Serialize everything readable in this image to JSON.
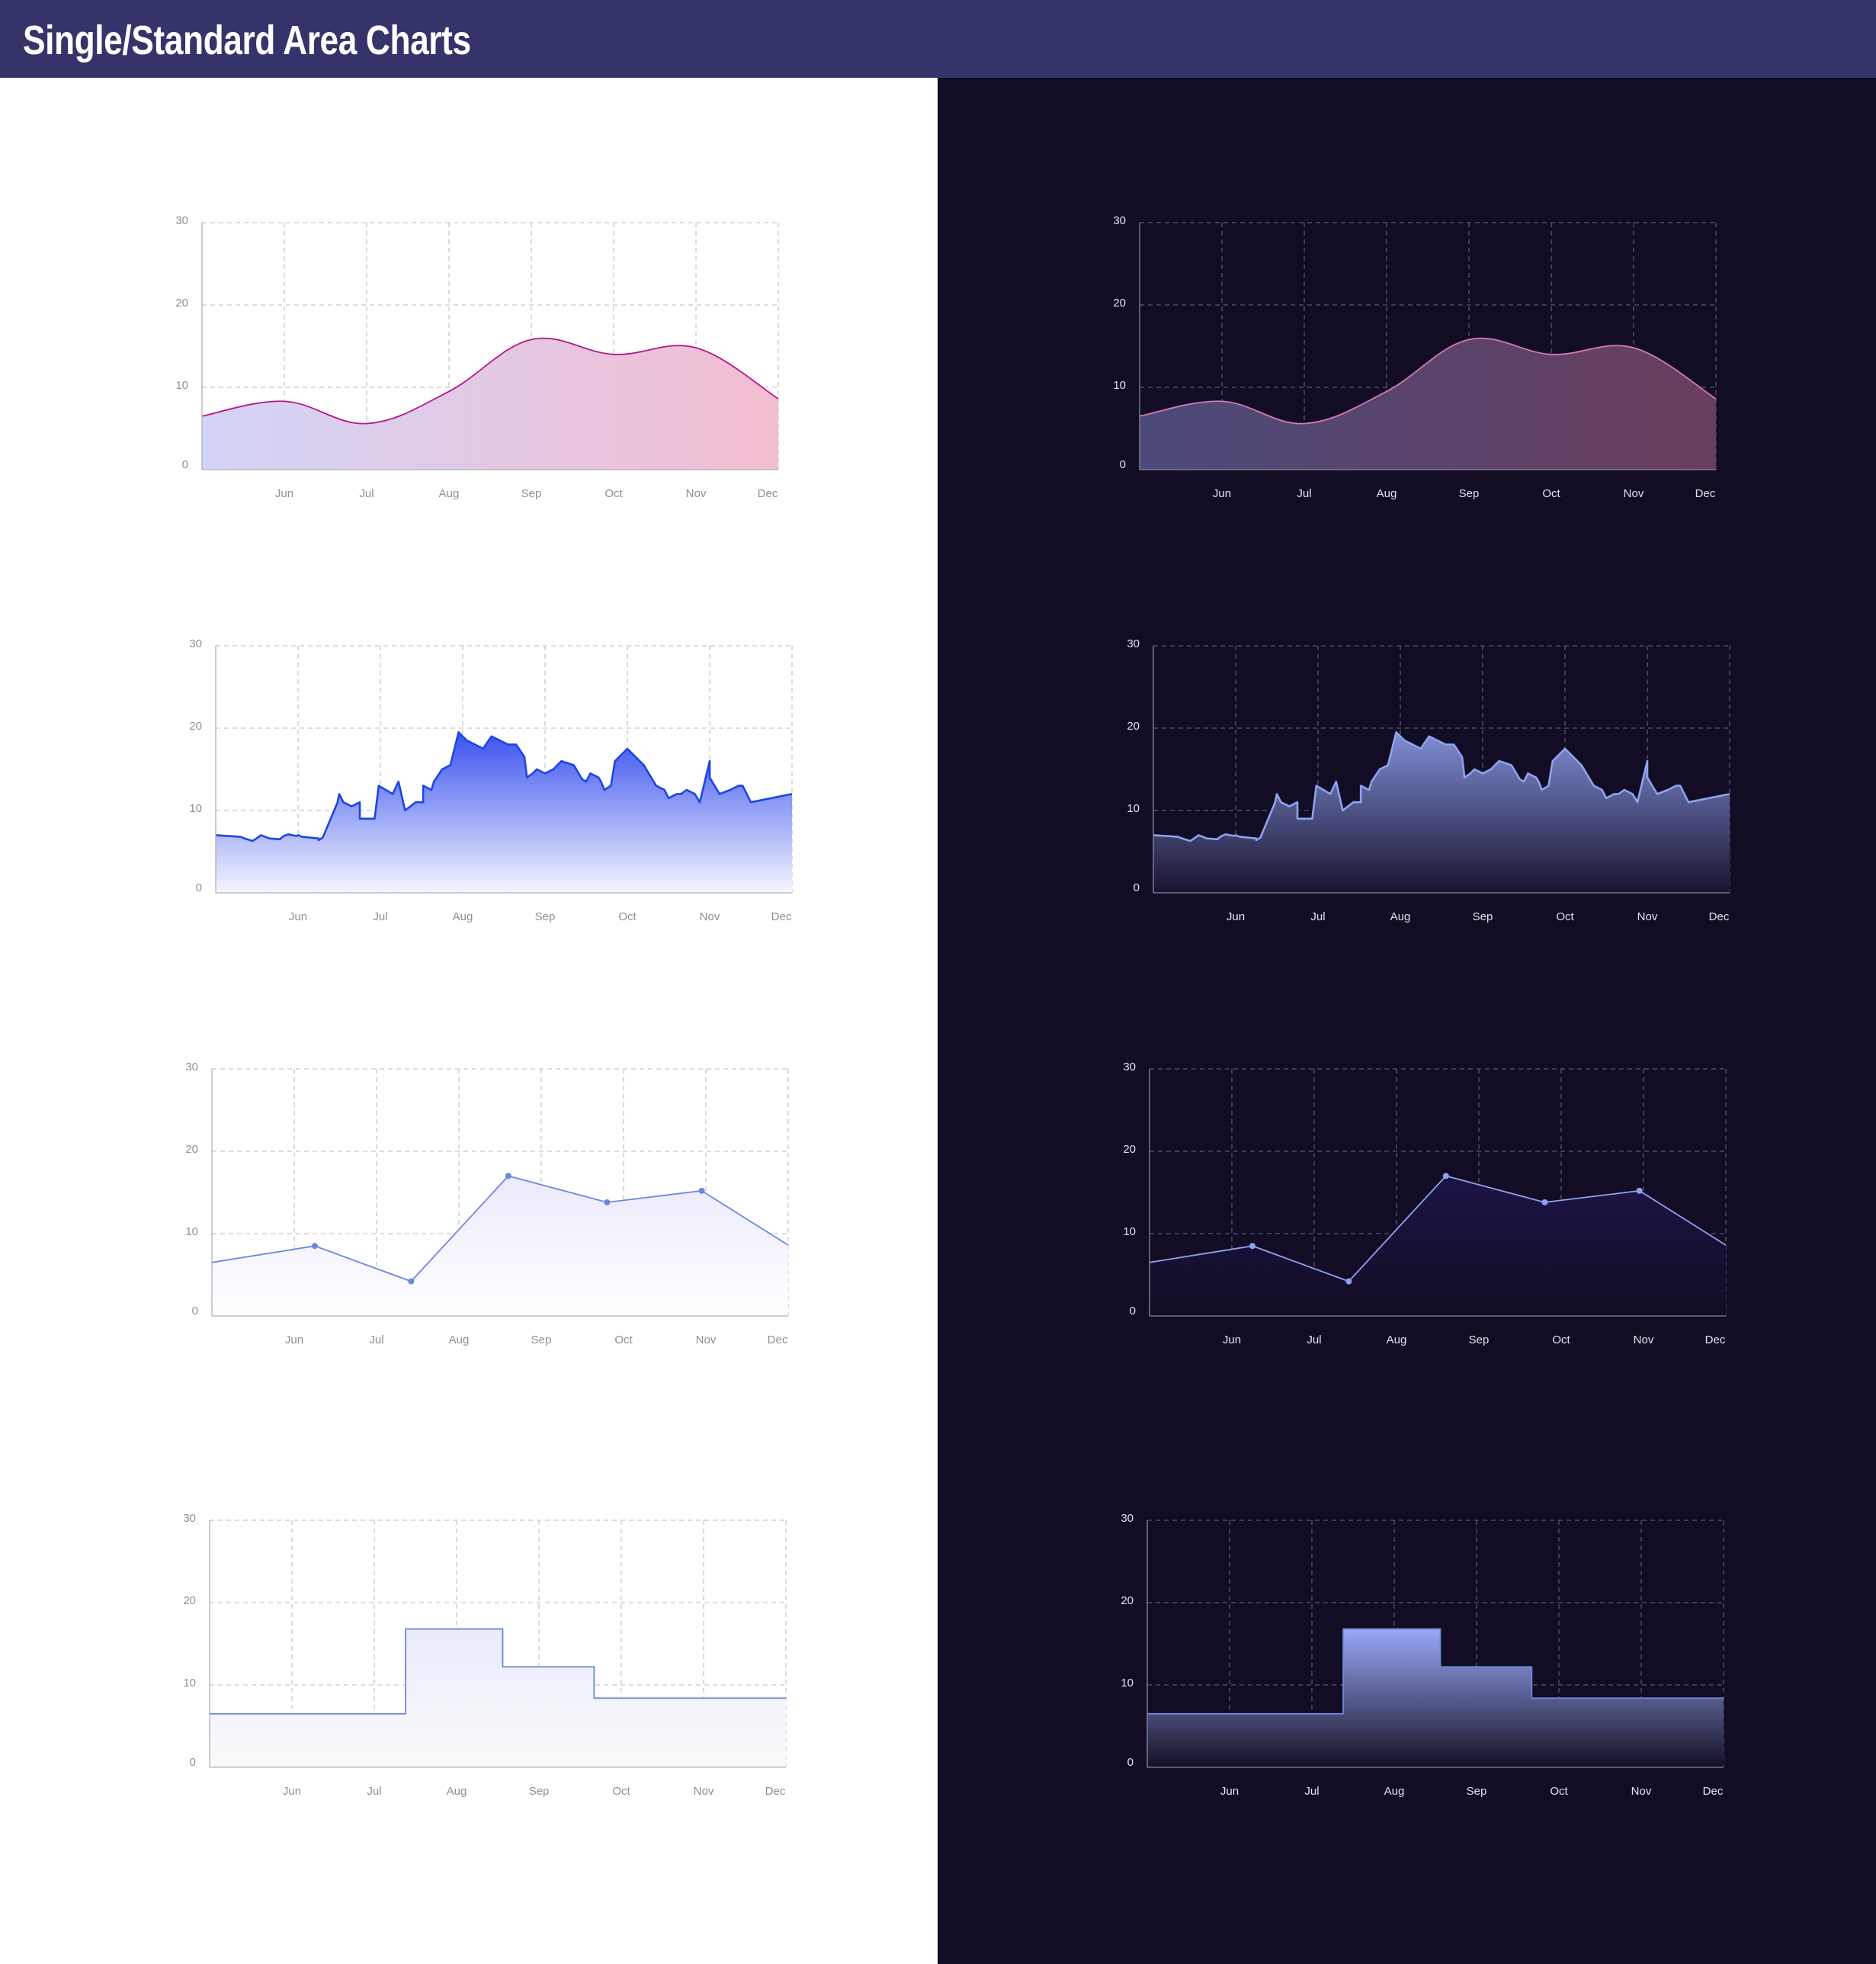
{
  "page": {
    "title": "Single/Standard Area Charts",
    "colors": {
      "header": "#35346a",
      "light_bg": "#ffffff",
      "dark_bg": "#120d24"
    }
  },
  "chart_data": [
    {
      "id": "smooth-light",
      "type": "area",
      "theme": "light",
      "curve": "smooth",
      "categories": [
        "Jun",
        "Jul",
        "Aug",
        "Sep",
        "Oct",
        "Nov",
        "Dec"
      ],
      "yticks": [
        "0",
        "10",
        "20",
        "30"
      ],
      "ylim": [
        0,
        30
      ],
      "grid": true,
      "x": [
        0,
        1,
        2,
        3,
        4,
        5,
        6,
        7
      ],
      "y": [
        6.5,
        8.3,
        5.6,
        9.5,
        15.8,
        14,
        14.8,
        8.6
      ],
      "line_color": "#b5168a",
      "fill_start": "#d2d4f6",
      "fill_end": "#f3bdd1"
    },
    {
      "id": "jagged-light",
      "type": "area",
      "theme": "light",
      "curve": "linear",
      "categories": [
        "Jun",
        "Jul",
        "Aug",
        "Sep",
        "Oct",
        "Nov",
        "Dec"
      ],
      "yticks": [
        "0",
        "10",
        "20",
        "30"
      ],
      "ylim": [
        0,
        30
      ],
      "grid": true,
      "x": [
        0,
        0.3,
        0.35,
        0.45,
        0.48,
        0.55,
        0.6,
        0.65,
        0.78,
        0.8,
        0.83,
        0.88,
        0.93,
        0.98,
        1.0,
        1.05,
        1.25,
        1.25,
        1.3,
        1.48,
        1.5,
        1.55,
        1.65,
        1.75,
        1.75,
        1.8,
        1.93,
        1.98,
        2.15,
        2.22,
        2.3,
        2.43,
        2.52,
        2.52,
        2.62,
        2.65,
        2.75,
        2.85,
        2.95,
        3.05,
        3.25,
        3.28,
        3.35,
        3.45,
        3.55,
        3.6,
        3.65,
        3.75,
        3.78,
        3.85,
        3.9,
        4.0,
        4.1,
        4.2,
        4.35,
        4.45,
        4.5,
        4.55,
        4.65,
        4.68,
        4.72,
        4.8,
        4.85,
        5.0,
        5.2,
        5.35,
        5.45,
        5.5,
        5.6,
        5.65,
        5.72,
        5.82,
        5.88,
        6.0,
        6.0,
        6.12,
        6.25,
        6.35,
        6.4,
        6.5,
        7.0
      ],
      "y": [
        7,
        6.8,
        6.6,
        6.3,
        6.5,
        7,
        6.8,
        6.6,
        6.5,
        6.7,
        6.9,
        7.1,
        7.0,
        6.9,
        7.0,
        6.8,
        6.6,
        6.4,
        6.7,
        11,
        12,
        11,
        10.5,
        11,
        9,
        9,
        9,
        13,
        12,
        13.5,
        10,
        11,
        11,
        13,
        12.5,
        13.5,
        15,
        15.5,
        19.5,
        18.5,
        17.5,
        18,
        19,
        18.5,
        18,
        18,
        18,
        16.5,
        14,
        14.5,
        15,
        14.5,
        15,
        16,
        15.5,
        13.8,
        13.5,
        14.5,
        14,
        13.5,
        12.5,
        13,
        16,
        17.5,
        15.5,
        13,
        12.5,
        11.5,
        12,
        12,
        12.5,
        12,
        11,
        16,
        14,
        12,
        12.5,
        13,
        13,
        11,
        12
      ],
      "line_color": "#1d45e4",
      "fill_start": "#3a52ee",
      "fill_end": "#f5f6ff"
    },
    {
      "id": "points-light",
      "type": "area",
      "theme": "light",
      "curve": "linear",
      "categories": [
        "Jun",
        "Jul",
        "Aug",
        "Sep",
        "Oct",
        "Nov",
        "Dec"
      ],
      "yticks": [
        "0",
        "10",
        "20",
        "30"
      ],
      "ylim": [
        0,
        30
      ],
      "grid": true,
      "x": [
        0,
        1.25,
        2.42,
        3.6,
        4.8,
        5.95,
        7.0
      ],
      "y": [
        6.5,
        8.5,
        4.2,
        17,
        13.8,
        15.2,
        8.6
      ],
      "markers": [
        false,
        true,
        true,
        true,
        true,
        true,
        false
      ],
      "line_color": "#6c88de",
      "fill_start": "#ece9fb",
      "fill_end": "#ffffff"
    },
    {
      "id": "step-light",
      "type": "area",
      "theme": "light",
      "curve": "step",
      "categories": [
        "Jun",
        "Jul",
        "Aug",
        "Sep",
        "Oct",
        "Nov",
        "Dec"
      ],
      "yticks": [
        "0",
        "10",
        "20",
        "30"
      ],
      "ylim": [
        0,
        30
      ],
      "grid": true,
      "x": [
        0,
        2.38,
        3.56,
        4.67,
        7.0
      ],
      "y": [
        6.5,
        16.8,
        12.2,
        8.4,
        8.4
      ],
      "line_color": "#6c88de",
      "fill_start": "#e8ecfb",
      "fill_end": "#fafafa"
    },
    {
      "id": "smooth-dark",
      "type": "area",
      "theme": "dark",
      "curve": "smooth",
      "categories": [
        "Jun",
        "Jul",
        "Aug",
        "Sep",
        "Oct",
        "Nov",
        "Dec"
      ],
      "yticks": [
        "0",
        "10",
        "20",
        "30"
      ],
      "ylim": [
        0,
        30
      ],
      "grid": true,
      "x": [
        0,
        1,
        2,
        3,
        4,
        5,
        6,
        7
      ],
      "y": [
        6.5,
        8.3,
        5.6,
        9.5,
        15.8,
        14,
        14.8,
        8.6
      ],
      "line_color": "#d579b8",
      "fill_start": "#4b4a7a",
      "fill_end": "#6a3e5e"
    },
    {
      "id": "jagged-dark",
      "type": "area",
      "theme": "dark",
      "curve": "linear",
      "categories": [
        "Jun",
        "Jul",
        "Aug",
        "Sep",
        "Oct",
        "Nov",
        "Dec"
      ],
      "yticks": [
        "0",
        "10",
        "20",
        "30"
      ],
      "ylim": [
        0,
        30
      ],
      "grid": true,
      "x": [
        0,
        0.3,
        0.35,
        0.45,
        0.48,
        0.55,
        0.6,
        0.65,
        0.78,
        0.8,
        0.83,
        0.88,
        0.93,
        0.98,
        1.0,
        1.05,
        1.25,
        1.25,
        1.3,
        1.48,
        1.5,
        1.55,
        1.65,
        1.75,
        1.75,
        1.8,
        1.93,
        1.98,
        2.15,
        2.22,
        2.3,
        2.43,
        2.52,
        2.52,
        2.62,
        2.65,
        2.75,
        2.85,
        2.95,
        3.05,
        3.25,
        3.28,
        3.35,
        3.45,
        3.55,
        3.6,
        3.65,
        3.75,
        3.78,
        3.85,
        3.9,
        4.0,
        4.1,
        4.2,
        4.35,
        4.45,
        4.5,
        4.55,
        4.65,
        4.68,
        4.72,
        4.8,
        4.85,
        5.0,
        5.2,
        5.35,
        5.45,
        5.5,
        5.6,
        5.65,
        5.72,
        5.82,
        5.88,
        6.0,
        6.0,
        6.12,
        6.25,
        6.35,
        6.4,
        6.5,
        7.0
      ],
      "y": [
        7,
        6.8,
        6.6,
        6.3,
        6.5,
        7,
        6.8,
        6.6,
        6.5,
        6.7,
        6.9,
        7.1,
        7.0,
        6.9,
        7.0,
        6.8,
        6.6,
        6.4,
        6.7,
        11,
        12,
        11,
        10.5,
        11,
        9,
        9,
        9,
        13,
        12,
        13.5,
        10,
        11,
        11,
        13,
        12.5,
        13.5,
        15,
        15.5,
        19.5,
        18.5,
        17.5,
        18,
        19,
        18.5,
        18,
        18,
        18,
        16.5,
        14,
        14.5,
        15,
        14.5,
        15,
        16,
        15.5,
        13.8,
        13.5,
        14.5,
        14,
        13.5,
        12.5,
        13,
        16,
        17.5,
        15.5,
        13,
        12.5,
        11.5,
        12,
        12,
        12.5,
        12,
        11,
        16,
        14,
        12,
        12.5,
        13,
        13,
        11,
        12
      ],
      "line_color": "#8ea2f0",
      "fill_start": "#7f8ed4",
      "fill_end": "#1a1430"
    },
    {
      "id": "points-dark",
      "type": "area",
      "theme": "dark",
      "curve": "linear",
      "categories": [
        "Jun",
        "Jul",
        "Aug",
        "Sep",
        "Oct",
        "Nov",
        "Dec"
      ],
      "yticks": [
        "0",
        "10",
        "20",
        "30"
      ],
      "ylim": [
        0,
        30
      ],
      "grid": true,
      "x": [
        0,
        1.25,
        2.42,
        3.6,
        4.8,
        5.95,
        7.0
      ],
      "y": [
        6.5,
        8.5,
        4.2,
        17,
        13.8,
        15.2,
        8.6
      ],
      "markers": [
        false,
        true,
        true,
        true,
        true,
        true,
        false
      ],
      "line_color": "#8ea2f0",
      "fill_start": "#1c1446",
      "fill_end": "#120d24"
    },
    {
      "id": "step-dark",
      "type": "area",
      "theme": "dark",
      "curve": "step",
      "categories": [
        "Jun",
        "Jul",
        "Aug",
        "Sep",
        "Oct",
        "Nov",
        "Dec"
      ],
      "yticks": [
        "0",
        "10",
        "20",
        "30"
      ],
      "ylim": [
        0,
        30
      ],
      "grid": true,
      "x": [
        0,
        2.38,
        3.56,
        4.67,
        7.0
      ],
      "y": [
        6.5,
        16.8,
        12.2,
        8.4,
        8.4
      ],
      "line_color": "#6c88de",
      "fill_start": "#9aa8f8",
      "fill_end": "#141024"
    }
  ]
}
